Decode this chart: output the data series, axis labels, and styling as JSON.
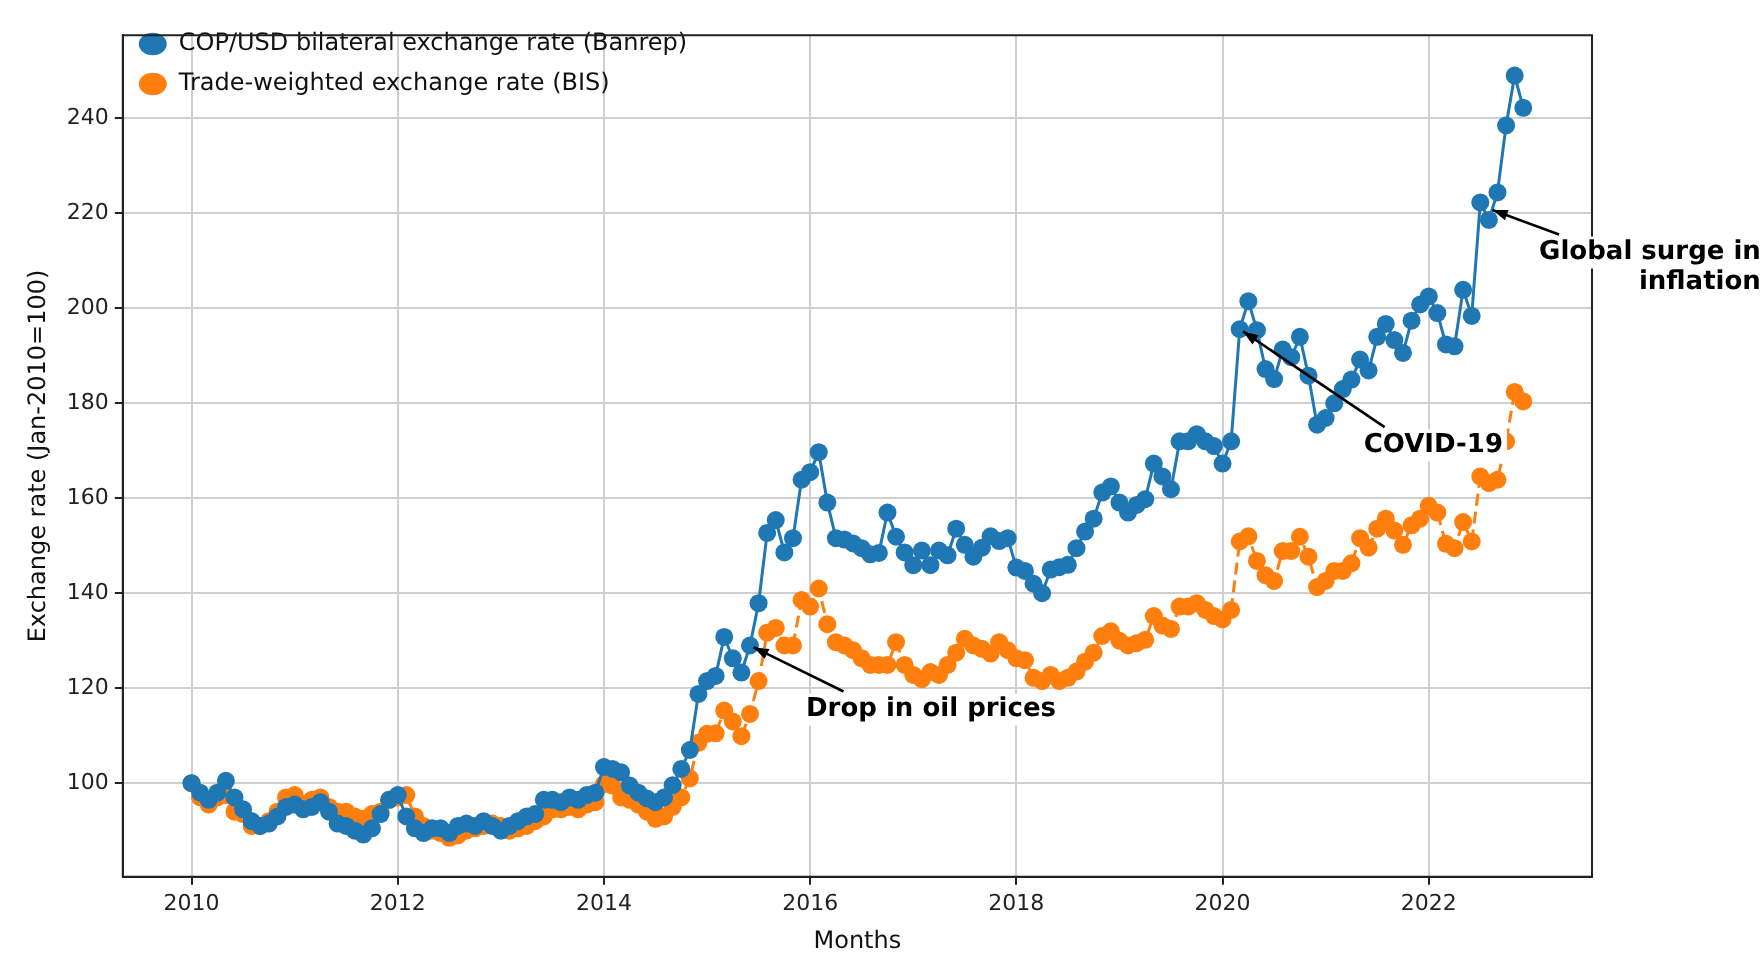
{
  "chart_data": {
    "type": "line",
    "xlabel": "Months",
    "ylabel": "Exchange rate (Jan-2010=100)",
    "x": [
      "2010-01",
      "2010-02",
      "2010-03",
      "2010-04",
      "2010-05",
      "2010-06",
      "2010-07",
      "2010-08",
      "2010-09",
      "2010-10",
      "2010-11",
      "2010-12",
      "2011-01",
      "2011-02",
      "2011-03",
      "2011-04",
      "2011-05",
      "2011-06",
      "2011-07",
      "2011-08",
      "2011-09",
      "2011-10",
      "2011-11",
      "2011-12",
      "2012-01",
      "2012-02",
      "2012-03",
      "2012-04",
      "2012-05",
      "2012-06",
      "2012-07",
      "2012-08",
      "2012-09",
      "2012-10",
      "2012-11",
      "2012-12",
      "2013-01",
      "2013-02",
      "2013-03",
      "2013-04",
      "2013-05",
      "2013-06",
      "2013-07",
      "2013-08",
      "2013-09",
      "2013-10",
      "2013-11",
      "2013-12",
      "2014-01",
      "2014-02",
      "2014-03",
      "2014-04",
      "2014-05",
      "2014-06",
      "2014-07",
      "2014-08",
      "2014-09",
      "2014-10",
      "2014-11",
      "2014-12",
      "2015-01",
      "2015-02",
      "2015-03",
      "2015-04",
      "2015-05",
      "2015-06",
      "2015-07",
      "2015-08",
      "2015-09",
      "2015-10",
      "2015-11",
      "2015-12",
      "2016-01",
      "2016-02",
      "2016-03",
      "2016-04",
      "2016-05",
      "2016-06",
      "2016-07",
      "2016-08",
      "2016-09",
      "2016-10",
      "2016-11",
      "2016-12",
      "2017-01",
      "2017-02",
      "2017-03",
      "2017-04",
      "2017-05",
      "2017-06",
      "2017-07",
      "2017-08",
      "2017-09",
      "2017-10",
      "2017-11",
      "2017-12",
      "2018-01",
      "2018-02",
      "2018-03",
      "2018-04",
      "2018-05",
      "2018-06",
      "2018-07",
      "2018-08",
      "2018-09",
      "2018-10",
      "2018-11",
      "2018-12",
      "2019-01",
      "2019-02",
      "2019-03",
      "2019-04",
      "2019-05",
      "2019-06",
      "2019-07",
      "2019-08",
      "2019-09",
      "2019-10",
      "2019-11",
      "2019-12",
      "2020-01",
      "2020-02",
      "2020-03",
      "2020-04",
      "2020-05",
      "2020-06",
      "2020-07",
      "2020-08",
      "2020-09",
      "2020-10",
      "2020-11",
      "2020-12",
      "2021-01",
      "2021-02",
      "2021-03",
      "2021-04",
      "2021-05",
      "2021-06",
      "2021-07",
      "2021-08",
      "2021-09",
      "2021-10",
      "2021-11",
      "2021-12",
      "2022-01",
      "2022-02",
      "2022-03",
      "2022-04",
      "2022-05",
      "2022-06",
      "2022-07",
      "2022-08",
      "2022-09",
      "2022-10",
      "2022-11",
      "2022-12"
    ],
    "series": [
      {
        "name": "COP/USD bilateral exchange rate (Banrep)",
        "color": "#1f77b4",
        "line_style": "solid",
        "values": [
          100,
          98,
          96.5,
          98,
          100.5,
          97,
          94.5,
          92,
          91,
          91.5,
          93,
          95,
          95.5,
          94.5,
          95,
          96,
          94,
          91.5,
          91,
          90,
          89.2,
          90.5,
          93.5,
          96.5,
          97.5,
          93,
          90.5,
          89.5,
          90.5,
          90.5,
          89.5,
          91,
          91.5,
          91,
          92,
          91,
          90,
          91,
          92,
          93,
          93.5,
          96.5,
          96.5,
          96,
          97,
          96.5,
          97.5,
          98,
          103.4,
          103,
          102.3,
          99.5,
          98,
          96.8,
          96,
          97,
          99.6,
          103,
          107,
          118.8,
          121.5,
          122.6,
          130.8,
          126.3,
          123.3,
          129,
          137.9,
          152.7,
          155.4,
          148.6,
          151.6,
          163.9,
          165.5,
          169.7,
          159.1,
          151.6,
          151.3,
          150.5,
          149.5,
          148.2,
          148.5,
          157,
          151.9,
          148.6,
          145.9,
          149,
          145.9,
          149,
          148,
          153.6,
          150.2,
          147.7,
          149.6,
          152,
          151,
          151.6,
          145.4,
          144.7,
          142,
          140,
          145,
          145.5,
          146,
          149.5,
          153,
          155.7,
          161.2,
          162.5,
          159.1,
          157,
          158.6,
          159.8,
          167.3,
          164.6,
          161.9,
          172,
          172,
          173.5,
          172,
          171,
          167.3,
          172,
          195.6,
          201.5,
          195.4,
          187.2,
          185.1,
          191.3,
          189.7,
          194,
          185.8,
          175.5,
          176.9,
          180,
          183,
          185,
          189.2,
          186.9,
          194,
          196.7,
          193.3,
          190.6,
          197.4,
          200.8,
          202.5,
          199,
          192.4,
          192,
          203.9,
          198.4,
          222.3,
          218.6,
          224.4,
          238.5,
          249,
          242.2
        ]
      },
      {
        "name": "Trade-weighted exchange rate (BIS)",
        "color": "#ff7f0e",
        "line_style": "dashed",
        "values": [
          100,
          97,
          95.5,
          97,
          97.5,
          94,
          93.5,
          91,
          91,
          92,
          94,
          97,
          97.5,
          95.5,
          96.5,
          97,
          95,
          94,
          94,
          93,
          92.5,
          93.5,
          94,
          96.5,
          97,
          97.5,
          93,
          91,
          90,
          89.5,
          88.5,
          89,
          90,
          90.5,
          91,
          91.5,
          91,
          90,
          90.5,
          91,
          92,
          93,
          94.5,
          94.5,
          95,
          94.5,
          95.5,
          96,
          99.8,
          99.5,
          97,
          96.5,
          95.5,
          94,
          92.5,
          93,
          95,
          97,
          101,
          108.5,
          110.4,
          110.5,
          115.3,
          113,
          109.9,
          114.6,
          121.5,
          131.7,
          132.7,
          129,
          129,
          138.6,
          137.2,
          141,
          133.5,
          129.7,
          129,
          128,
          126.3,
          124.9,
          124.9,
          124.9,
          129.7,
          124.9,
          122.8,
          121.9,
          123.4,
          122.8,
          124.9,
          127.5,
          130.4,
          129,
          128.3,
          127.3,
          129.7,
          128,
          126.3,
          125.9,
          122.2,
          121.5,
          122.8,
          121.5,
          122.2,
          123.5,
          125.6,
          127.5,
          131,
          132,
          130,
          129,
          129.5,
          130.2,
          135.2,
          133.2,
          132.5,
          137.2,
          137.2,
          137.9,
          136.5,
          135.2,
          134.5,
          136.5,
          150.9,
          152,
          146.8,
          143.8,
          142.6,
          148.9,
          148.9,
          151.9,
          147.7,
          141.3,
          142.6,
          144.7,
          144.7,
          146.3,
          151.6,
          149.6,
          153.6,
          155.7,
          153.2,
          150.2,
          154.3,
          155.7,
          158.4,
          157,
          150.4,
          149.5,
          155,
          150.9,
          164.6,
          163.2,
          163.9,
          172,
          182.4,
          180.4
        ]
      }
    ],
    "xlim": [
      "2009-05",
      "2023-08"
    ],
    "xticks": [
      "2010",
      "2012",
      "2014",
      "2016",
      "2018",
      "2020",
      "2022"
    ],
    "ylim": [
      80.3,
      257.5
    ],
    "yticks": [
      100,
      120,
      140,
      160,
      180,
      200,
      220,
      240
    ],
    "grid": true,
    "legend": "top left",
    "marker": "circle",
    "annotations": [
      {
        "text": "Drop in oil prices",
        "x": "2015-06",
        "y": 129
      },
      {
        "text": "COVID-19",
        "x": "2020-03",
        "y": 195.6
      },
      {
        "text": "Global surge in inflation",
        "x": "2022-08",
        "y": 221
      }
    ]
  }
}
